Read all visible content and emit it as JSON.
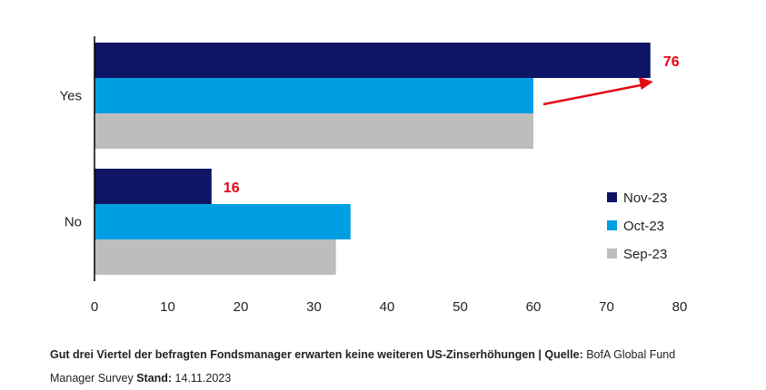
{
  "chart_data": {
    "type": "bar",
    "orientation": "horizontal",
    "categories": [
      "Yes",
      "No"
    ],
    "series": [
      {
        "name": "Nov-23",
        "color": "#0f1565",
        "values": [
          76,
          16
        ]
      },
      {
        "name": "Oct-23",
        "color": "#009fe3",
        "values": [
          60,
          35
        ]
      },
      {
        "name": "Sep-23",
        "color": "#bdbdbd",
        "values": [
          60,
          33
        ]
      }
    ],
    "xlim": [
      0,
      80
    ],
    "xticks": [
      "0",
      "10",
      "20",
      "30",
      "40",
      "50",
      "60",
      "70",
      "80"
    ],
    "grid": false,
    "legend": "bottom-right",
    "annotations": [
      {
        "category": "Yes",
        "text": "76",
        "color": "#e30613",
        "arrow": true
      },
      {
        "category": "No",
        "text": "16",
        "color": "#e30613"
      }
    ]
  },
  "caption": {
    "headline": "Gut drei Viertel der befragten Fondsmanager erwarten keine weiteren US-Zinserhöhungen | ",
    "source_label": "Quelle:",
    "source": " BofA Global Fund Manager Survey ",
    "date_label": "Stand:",
    "date": " 14.11.2023"
  }
}
